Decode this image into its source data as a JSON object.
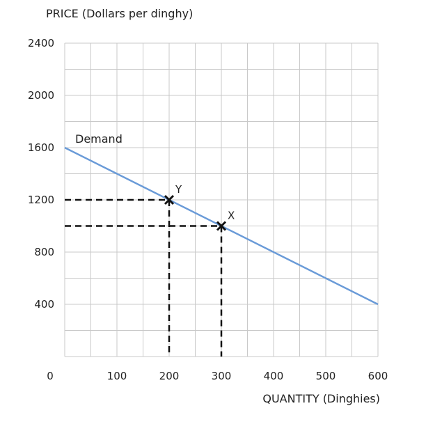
{
  "chart_data": {
    "type": "line",
    "ylabel": "PRICE (Dollars per dinghy)",
    "xlabel": "QUANTITY (Dinghies)",
    "xlim": [
      0,
      600
    ],
    "ylim": [
      0,
      2400
    ],
    "x_ticks": [
      0,
      100,
      200,
      300,
      400,
      500,
      600
    ],
    "x_tick_labels": [
      "0",
      "100",
      "200",
      "300",
      "400",
      "500",
      "600"
    ],
    "y_ticks": [
      400,
      800,
      1200,
      1600,
      2000,
      2400
    ],
    "y_tick_labels": [
      "400",
      "800",
      "1200",
      "1600",
      "2000",
      "2400"
    ],
    "grid_step_x": 50,
    "grid_step_y": 200,
    "grid": true,
    "series": [
      {
        "name": "Demand",
        "color": "#6a9bd8",
        "x": [
          0,
          600
        ],
        "y": [
          1600,
          400
        ]
      }
    ],
    "points": [
      {
        "label": "Y",
        "x": 200,
        "y": 1200
      },
      {
        "label": "X",
        "x": 300,
        "y": 1000
      }
    ],
    "guide_line_style": "dashed"
  }
}
